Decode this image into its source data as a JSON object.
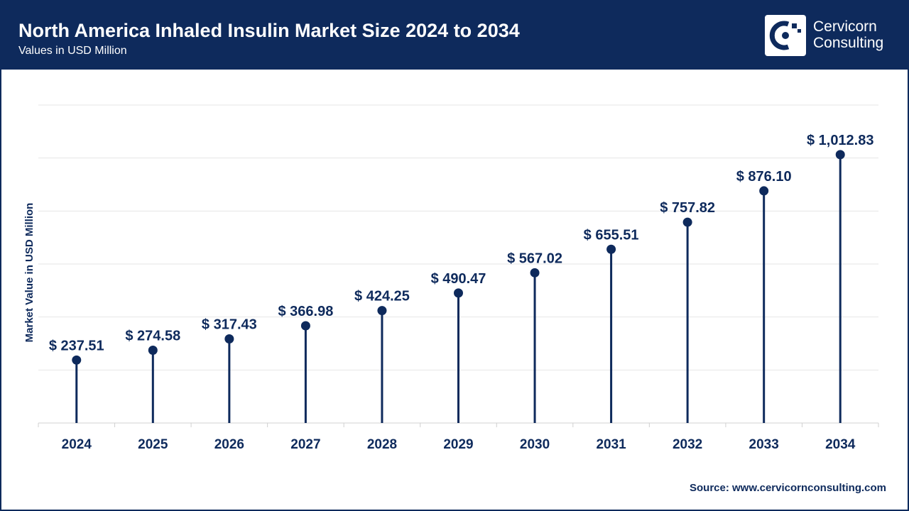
{
  "header": {
    "title": "North America Inhaled Insulin Market Size 2024 to 2034",
    "subtitle": "Values in USD Million",
    "brand_line1": "Cervicorn",
    "brand_line2": "Consulting",
    "background_color": "#0e2a5c",
    "logo_icon": "cervicorn-logo-icon"
  },
  "chart_data": {
    "type": "lollipop",
    "title": "North America Inhaled Insulin Market Size 2024 to 2034",
    "subtitle": "Values in USD Million",
    "xlabel": "",
    "ylabel": "Market Value in USD Million",
    "categories": [
      "2024",
      "2025",
      "2026",
      "2027",
      "2028",
      "2029",
      "2030",
      "2031",
      "2032",
      "2033",
      "2034"
    ],
    "values": [
      237.51,
      274.58,
      317.43,
      366.98,
      424.25,
      490.47,
      567.02,
      655.51,
      757.82,
      876.1,
      1012.83
    ],
    "value_labels": [
      "$ 237.51",
      "$ 274.58",
      "$ 317.43",
      "$ 366.98",
      "$ 424.25",
      "$ 490.47",
      "$ 567.02",
      "$ 655.51",
      "$ 757.82",
      "$ 876.10",
      "$ 1,012.83"
    ],
    "ylim": [
      0,
      1200
    ],
    "grid": true,
    "color": "#0e2a5c",
    "grid_color": "#e6e6e6"
  },
  "footer": {
    "source": "Source: www.cervicornconsulting.com"
  }
}
